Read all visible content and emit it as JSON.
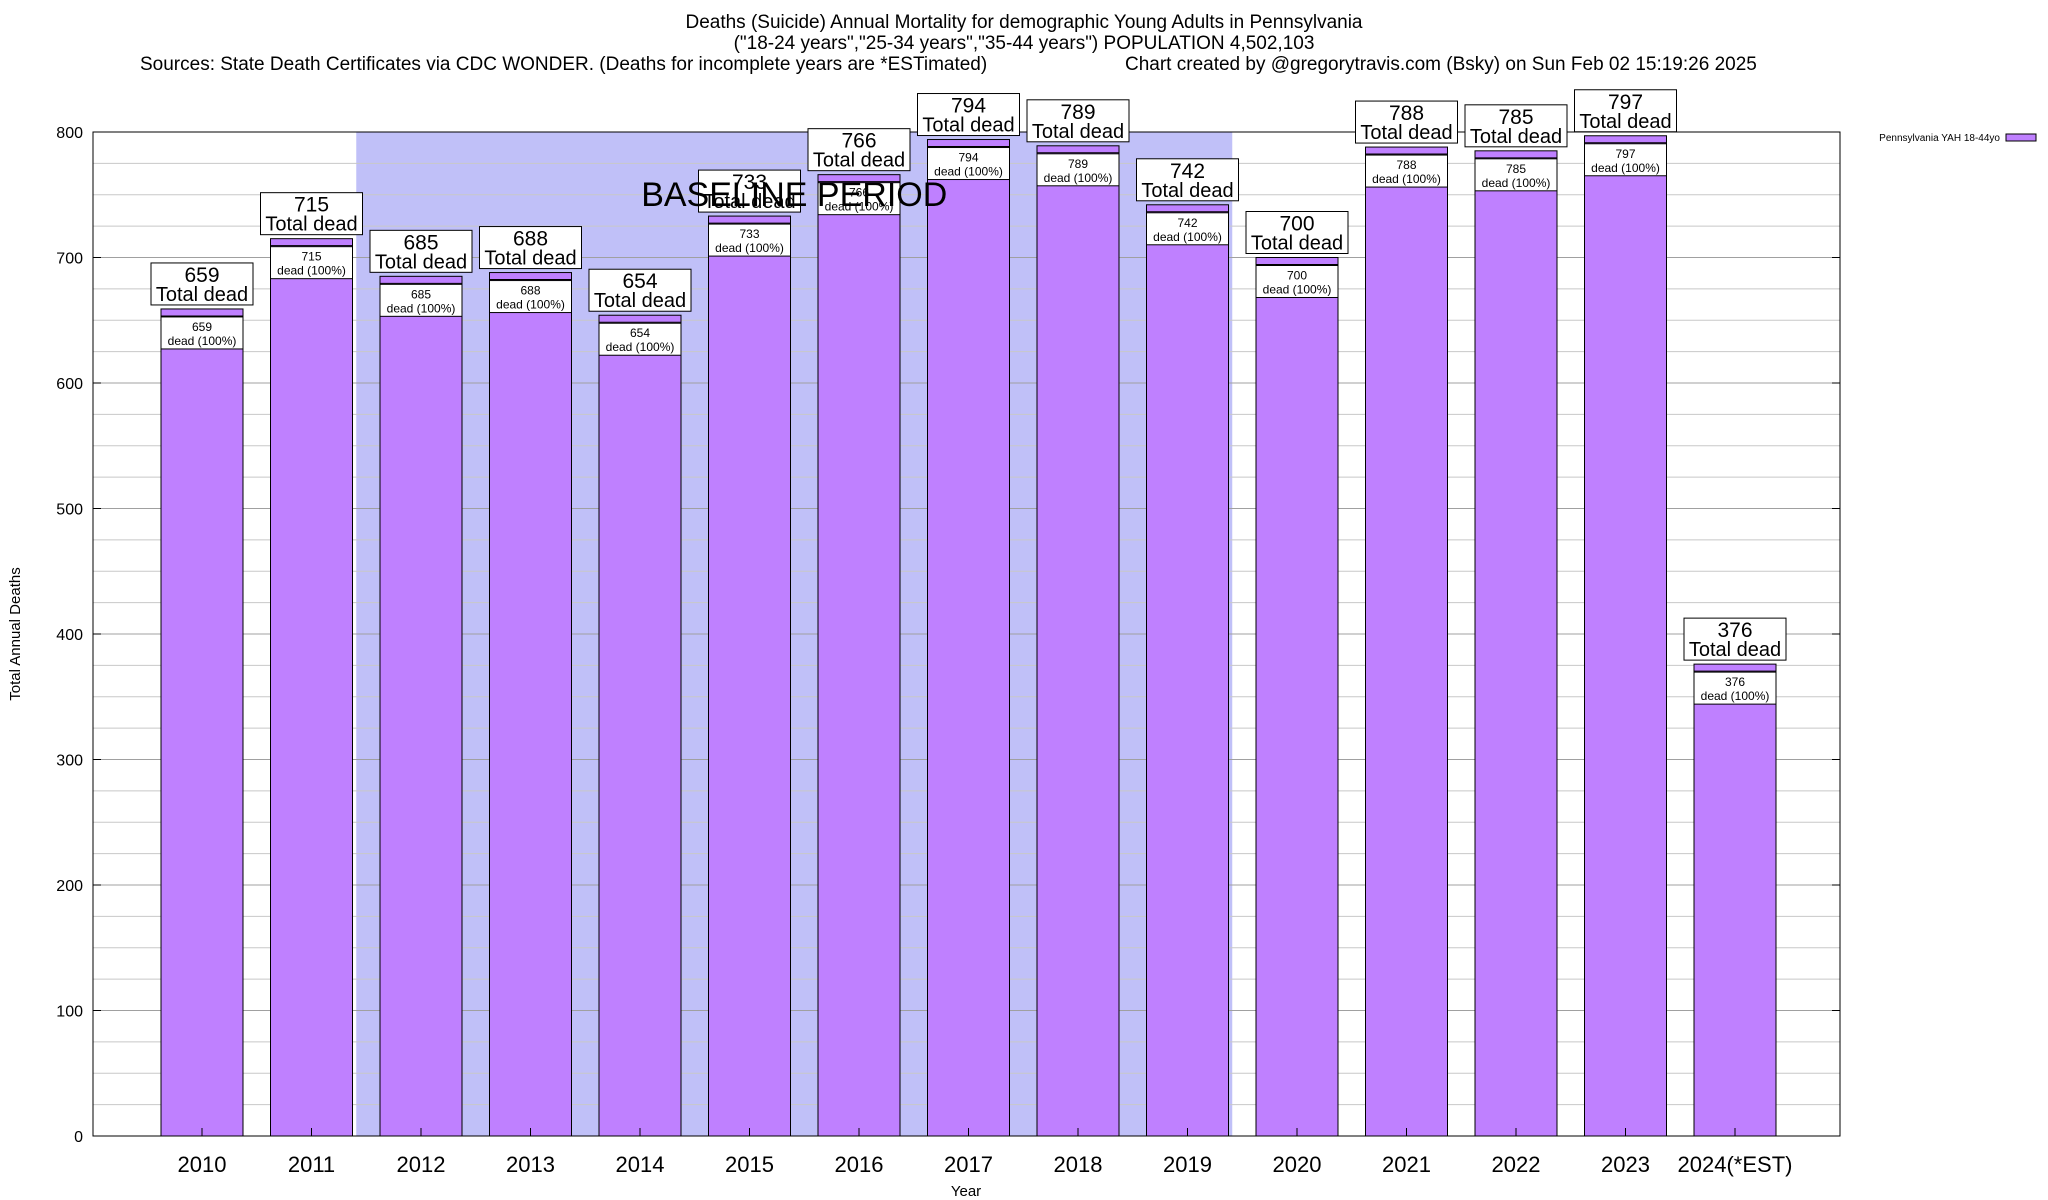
{
  "header": {
    "title_line1": "Deaths (Suicide) Annual Mortality for demographic Young Adults in Pennsylvania",
    "title_line2": "(\"18-24 years\",\"25-34 years\",\"35-44 years\") POPULATION 4,502,103",
    "sources": "Sources: State Death Certificates via CDC WONDER. (Deaths for incomplete years are *ESTimated)",
    "credit": "Chart created by @gregorytravis.com (Bsky) on Sun Feb 02 15:19:26 2025"
  },
  "chart_data": {
    "type": "bar",
    "categories": [
      "2010",
      "2011",
      "2012",
      "2013",
      "2014",
      "2015",
      "2016",
      "2017",
      "2018",
      "2019",
      "2020",
      "2021",
      "2022",
      "2023",
      "2024(*EST)"
    ],
    "series": [
      {
        "name": "Pennsylvania YAH 18-44yo",
        "values": [
          659,
          715,
          685,
          688,
          654,
          733,
          766,
          794,
          789,
          742,
          700,
          788,
          785,
          797,
          376
        ]
      }
    ],
    "xlabel": "Year",
    "ylabel": "Total Annual Deaths",
    "ylim": [
      0,
      800
    ],
    "yticks": [
      0,
      100,
      200,
      300,
      400,
      500,
      600,
      700,
      800
    ],
    "total_label": "Total dead",
    "inner_label": "dead (100%)",
    "baseline_label": "BASELINE PERIOD",
    "baseline_range": [
      "2012",
      "2019"
    ],
    "grid": true,
    "legend_position": "top-right",
    "colors": {
      "bar": "#bf80ff",
      "baseline": "#c0c0f8",
      "bar_stroke": "#000000"
    }
  }
}
